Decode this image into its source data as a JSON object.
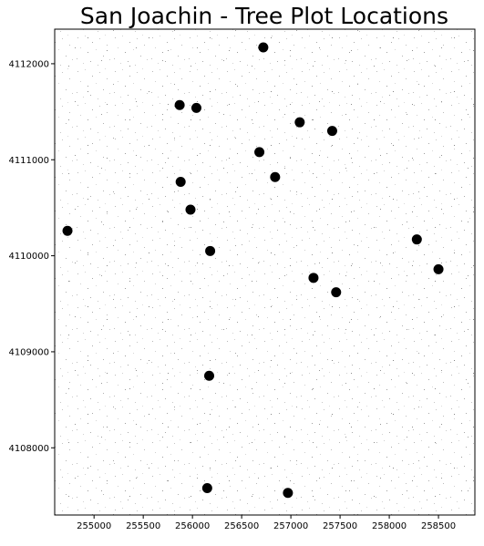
{
  "chart_data": {
    "type": "scatter",
    "title": "San Joachin - Tree Plot Locations",
    "xlabel": "",
    "ylabel": "",
    "xlim": [
      254600,
      258870
    ],
    "ylim": [
      4107300,
      4112360
    ],
    "background": "grayscale-canopy-raster",
    "marker_color": "#000000",
    "x_ticks": [
      {
        "value": 255000,
        "label": "255000"
      },
      {
        "value": 255500,
        "label": "255500"
      },
      {
        "value": 256000,
        "label": "256000"
      },
      {
        "value": 256500,
        "label": "256500"
      },
      {
        "value": 257000,
        "label": "257000"
      },
      {
        "value": 257500,
        "label": "257500"
      },
      {
        "value": 258000,
        "label": "258000"
      },
      {
        "value": 258500,
        "label": "258500"
      }
    ],
    "y_ticks": [
      {
        "value": 4108000,
        "label": "4108000"
      },
      {
        "value": 4109000,
        "label": "4109000"
      },
      {
        "value": 4110000,
        "label": "4110000"
      },
      {
        "value": 4111000,
        "label": "4111000"
      },
      {
        "value": 4112000,
        "label": "4112000"
      }
    ],
    "points": [
      {
        "x": 256720,
        "y": 4112170
      },
      {
        "x": 255870,
        "y": 4111570
      },
      {
        "x": 256040,
        "y": 4111540
      },
      {
        "x": 257090,
        "y": 4111390
      },
      {
        "x": 257420,
        "y": 4111300
      },
      {
        "x": 256680,
        "y": 4111080
      },
      {
        "x": 256840,
        "y": 4110820
      },
      {
        "x": 255880,
        "y": 4110770
      },
      {
        "x": 255980,
        "y": 4110480
      },
      {
        "x": 254730,
        "y": 4110260
      },
      {
        "x": 258280,
        "y": 4110170
      },
      {
        "x": 256180,
        "y": 4110050
      },
      {
        "x": 258500,
        "y": 4109860
      },
      {
        "x": 257230,
        "y": 4109770
      },
      {
        "x": 257460,
        "y": 4109620
      },
      {
        "x": 256170,
        "y": 4108750
      },
      {
        "x": 256150,
        "y": 4107580
      },
      {
        "x": 256970,
        "y": 4107530
      }
    ]
  }
}
